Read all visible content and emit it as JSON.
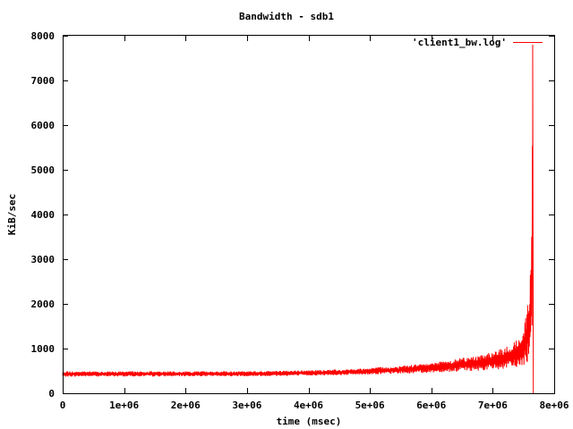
{
  "chart_data": {
    "type": "line",
    "title": "Bandwidth - sdb1",
    "xlabel": "time (msec)",
    "ylabel": "KiB/sec",
    "xlim": [
      0,
      8000000
    ],
    "ylim": [
      0,
      8000
    ],
    "x_ticks": [
      0,
      1000000,
      2000000,
      3000000,
      4000000,
      5000000,
      6000000,
      7000000,
      8000000
    ],
    "x_tick_labels": [
      "0",
      "1e+06",
      "2e+06",
      "3e+06",
      "4e+06",
      "5e+06",
      "6e+06",
      "7e+06",
      "8e+06"
    ],
    "y_ticks": [
      0,
      1000,
      2000,
      3000,
      4000,
      5000,
      6000,
      7000,
      8000
    ],
    "y_tick_labels": [
      "0",
      "1000",
      "2000",
      "3000",
      "4000",
      "5000",
      "6000",
      "7000",
      "8000"
    ],
    "grid": false,
    "legend_position": "top-right",
    "series": [
      {
        "name": "'client1_bw.log'",
        "color": "#ff0000",
        "x": [
          0,
          500000,
          1000000,
          1500000,
          2000000,
          2500000,
          3000000,
          3500000,
          4000000,
          4500000,
          5000000,
          5500000,
          6000000,
          6500000,
          7000000,
          7200000,
          7400000,
          7500000,
          7550000,
          7600000,
          7620000,
          7640000,
          7650000,
          7660000
        ],
        "y": [
          430,
          430,
          430,
          430,
          430,
          430,
          435,
          440,
          450,
          465,
          490,
          520,
          560,
          620,
          700,
          760,
          880,
          1050,
          1300,
          1800,
          2600,
          4800,
          7800,
          0
        ],
        "band_low": [
          370,
          375,
          375,
          375,
          380,
          380,
          380,
          385,
          395,
          405,
          420,
          440,
          460,
          490,
          520,
          540,
          570,
          600,
          650,
          800,
          1000,
          1500,
          2000,
          0
        ],
        "band_high": [
          490,
          490,
          490,
          490,
          490,
          490,
          495,
          500,
          515,
          535,
          570,
          610,
          680,
          790,
          920,
          1020,
          1200,
          1450,
          1800,
          2500,
          3100,
          4900,
          7800,
          0
        ]
      }
    ]
  }
}
